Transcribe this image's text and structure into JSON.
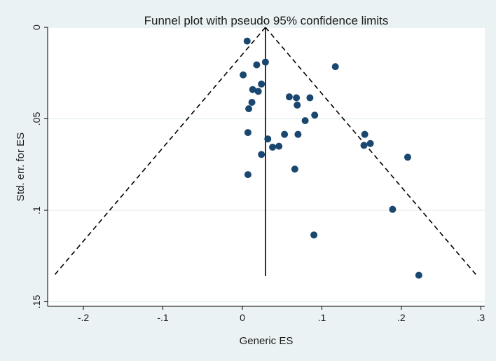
{
  "chart_data": {
    "type": "scatter",
    "title": "Funnel plot with pseudo 95% confidence limits",
    "xlabel": "Generic ES",
    "ylabel": "Std. err. for ES",
    "xlim": [
      -0.245,
      0.305
    ],
    "ylim": [
      0.1525,
      0
    ],
    "y_inverted": true,
    "grid": true,
    "x_ticks": [
      {
        "value": -0.2,
        "label": "-.2"
      },
      {
        "value": -0.1,
        "label": "-.1"
      },
      {
        "value": 0,
        "label": "0"
      },
      {
        "value": 0.1,
        "label": ".1"
      },
      {
        "value": 0.2,
        "label": ".2"
      },
      {
        "value": 0.3,
        "label": ".3"
      }
    ],
    "y_ticks": [
      {
        "value": 0,
        "label": "0"
      },
      {
        "value": 0.05,
        "label": ".05"
      },
      {
        "value": 0.1,
        "label": ".1"
      },
      {
        "value": 0.15,
        "label": ".15"
      }
    ],
    "pooled_effect": 0.029,
    "pseudo_ci_max_se": 0.136,
    "series": [
      {
        "name": "Studies",
        "points": [
          {
            "x": 0.006,
            "y": 0.0075
          },
          {
            "x": 0.029,
            "y": 0.019
          },
          {
            "x": 0.018,
            "y": 0.0205
          },
          {
            "x": 0.117,
            "y": 0.0215
          },
          {
            "x": 0.001,
            "y": 0.026
          },
          {
            "x": 0.024,
            "y": 0.031
          },
          {
            "x": 0.013,
            "y": 0.034
          },
          {
            "x": 0.02,
            "y": 0.035
          },
          {
            "x": 0.059,
            "y": 0.038
          },
          {
            "x": 0.068,
            "y": 0.0385
          },
          {
            "x": 0.085,
            "y": 0.0385
          },
          {
            "x": 0.012,
            "y": 0.041
          },
          {
            "x": 0.069,
            "y": 0.0425
          },
          {
            "x": 0.008,
            "y": 0.0445
          },
          {
            "x": 0.091,
            "y": 0.048
          },
          {
            "x": 0.079,
            "y": 0.051
          },
          {
            "x": 0.007,
            "y": 0.0575
          },
          {
            "x": 0.053,
            "y": 0.0585
          },
          {
            "x": 0.07,
            "y": 0.0585
          },
          {
            "x": 0.154,
            "y": 0.0585
          },
          {
            "x": 0.032,
            "y": 0.061
          },
          {
            "x": 0.161,
            "y": 0.0635
          },
          {
            "x": 0.153,
            "y": 0.0645
          },
          {
            "x": 0.046,
            "y": 0.065
          },
          {
            "x": 0.038,
            "y": 0.0655
          },
          {
            "x": 0.024,
            "y": 0.0695
          },
          {
            "x": 0.208,
            "y": 0.071
          },
          {
            "x": 0.066,
            "y": 0.0775
          },
          {
            "x": 0.007,
            "y": 0.0805
          },
          {
            "x": 0.189,
            "y": 0.0995
          },
          {
            "x": 0.09,
            "y": 0.1135
          },
          {
            "x": 0.222,
            "y": 0.1355
          }
        ]
      }
    ]
  },
  "colors": {
    "background": "#eaf2f3",
    "plot_area": "#ffffff",
    "gridline": "#e4eef0",
    "marker": "#1a476f",
    "line": "#000000"
  }
}
